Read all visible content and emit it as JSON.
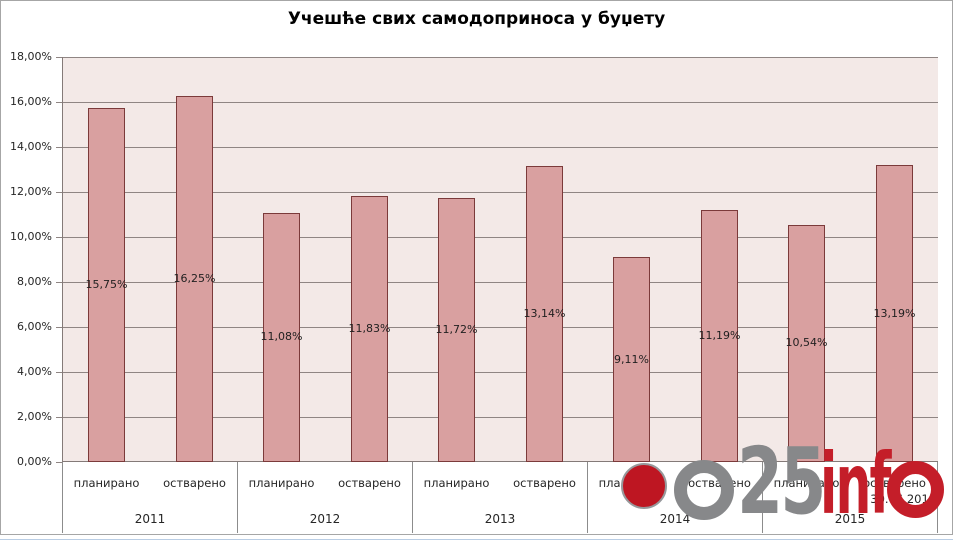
{
  "chart_data": {
    "type": "bar",
    "title": "Учешће свих самодоприноса у буџету",
    "xlabel": "",
    "ylabel": "",
    "ylim": [
      0,
      18
    ],
    "y_tick_step": 2,
    "y_ticks": [
      "0,00%",
      "2,00%",
      "4,00%",
      "6,00%",
      "8,00%",
      "10,00%",
      "12,00%",
      "14,00%",
      "16,00%",
      "18,00%"
    ],
    "grid": true,
    "legend_position": "none",
    "categories": [
      "планирано",
      "остварено"
    ],
    "groups": [
      {
        "year": "2011",
        "bars": [
          {
            "category": "планирано",
            "value": 15.75,
            "label": "15,75%"
          },
          {
            "category": "остварено",
            "value": 16.25,
            "label": "16,25%"
          }
        ]
      },
      {
        "year": "2012",
        "bars": [
          {
            "category": "планирано",
            "value": 11.08,
            "label": "11,08%"
          },
          {
            "category": "остварено",
            "value": 11.83,
            "label": "11,83%"
          }
        ]
      },
      {
        "year": "2013",
        "bars": [
          {
            "category": "планирано",
            "value": 11.72,
            "label": "11,72%"
          },
          {
            "category": "остварено",
            "value": 13.14,
            "label": "13,14%"
          }
        ]
      },
      {
        "year": "2014",
        "bars": [
          {
            "category": "планирано",
            "value": 9.11,
            "label": "9,11%"
          },
          {
            "category": "остварено",
            "value": 11.19,
            "label": "11,19%"
          }
        ]
      },
      {
        "year": "2015",
        "bars": [
          {
            "category": "планирано",
            "value": 10.54,
            "label": "10,54%"
          },
          {
            "category": "остварено",
            "value": 13.19,
            "label": "13,19%",
            "sublabel": "30.06.2015."
          }
        ]
      }
    ]
  },
  "watermark": {
    "primary": "O25",
    "secondary": "info"
  },
  "colors": {
    "bar_fill": "#d9a0a0",
    "bar_border": "#7b3a3a",
    "plot_bg": "#f3e9e7",
    "gridline": "#8f8583",
    "axis_line": "#847a78",
    "separator": "#8c8c8c",
    "text": "#262626",
    "frame": "#a6a6a6",
    "bottom_accent": "#b9cde4",
    "logo_gray": "#87888a",
    "logo_red": "#c41e29",
    "logo_dot": "#be1622"
  }
}
